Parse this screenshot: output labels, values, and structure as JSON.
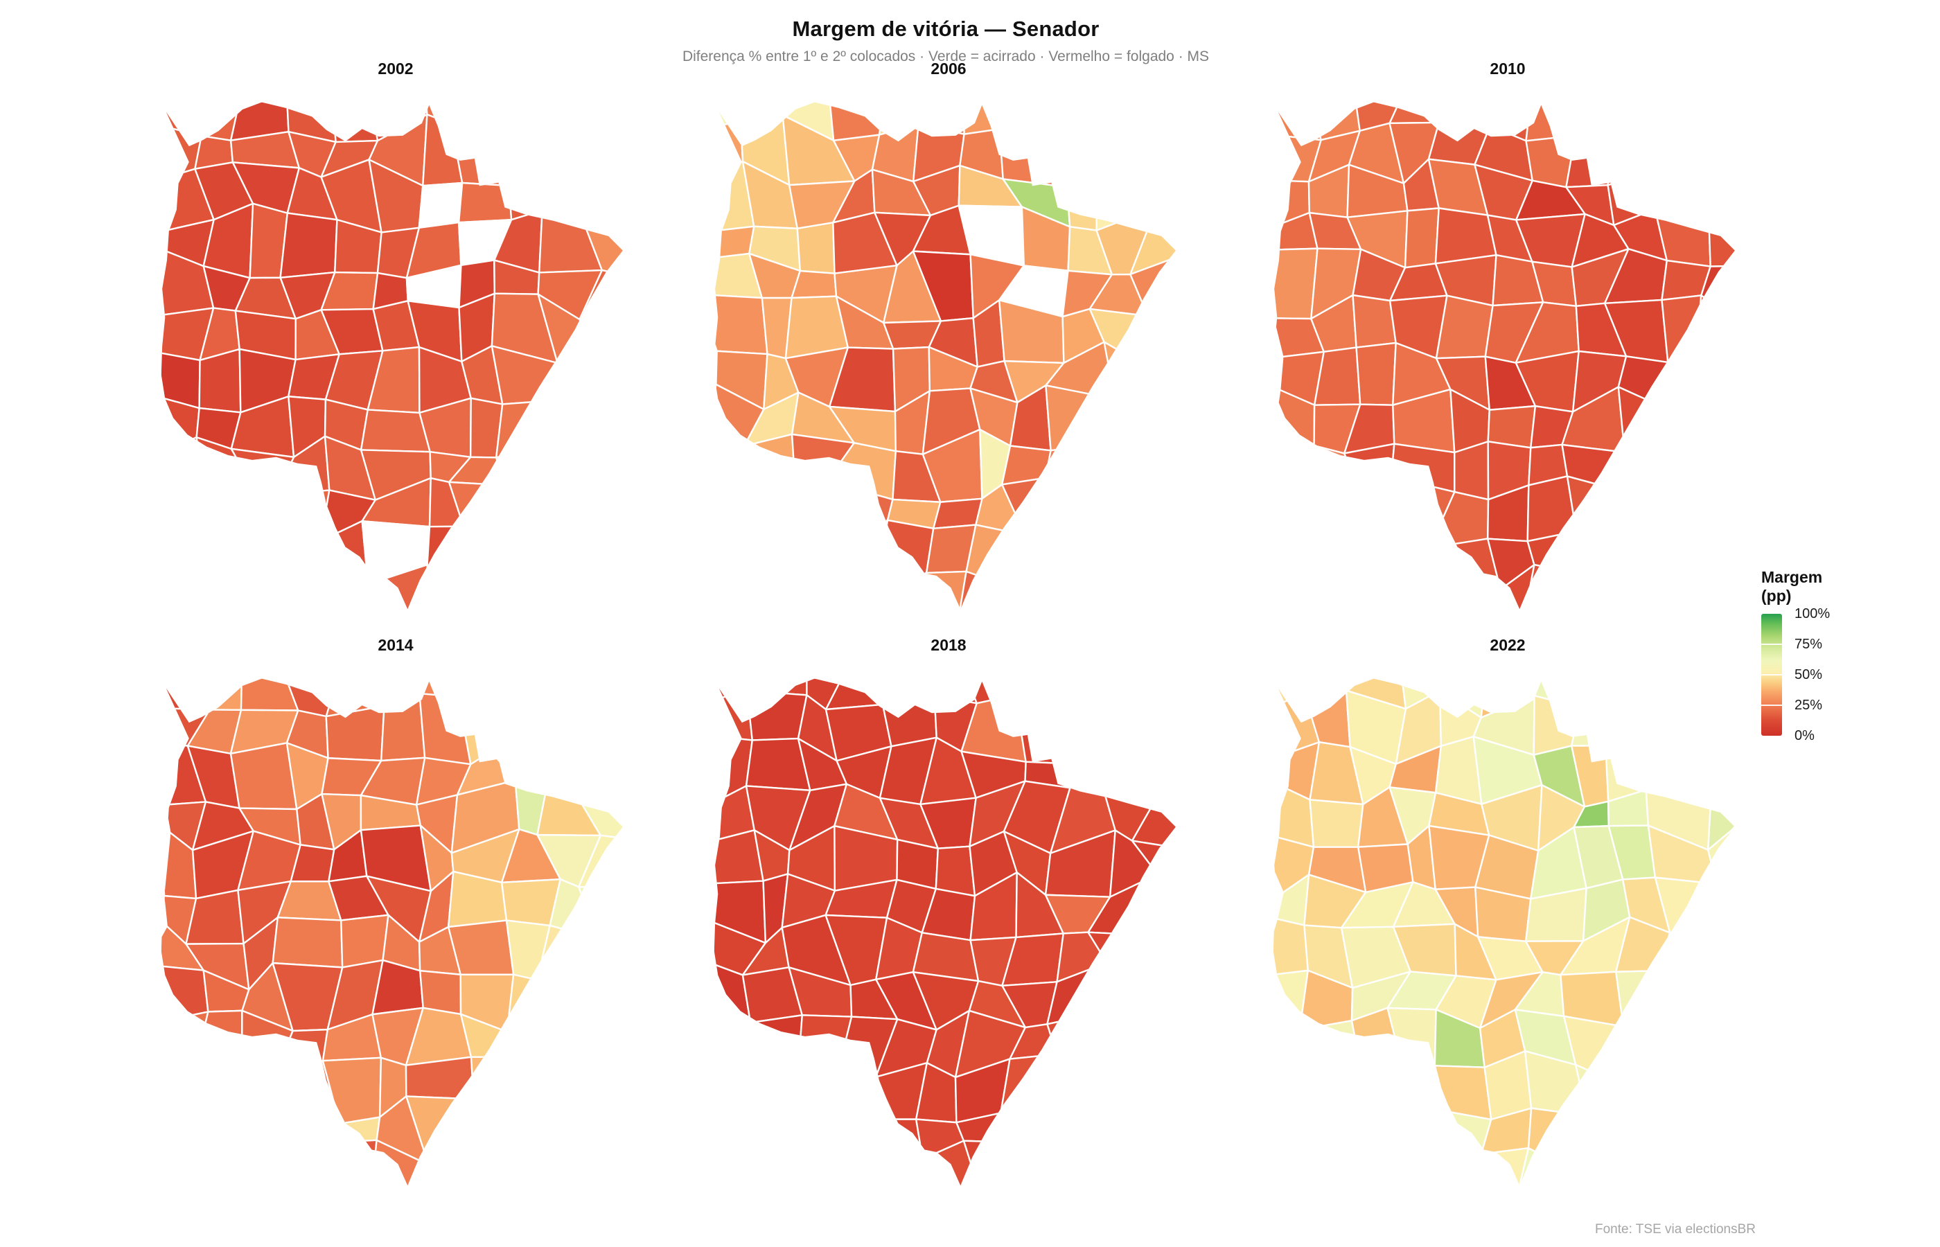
{
  "title": "Margem de vitória — Senador",
  "subtitle": "Diferença % entre 1º e 2º colocados · Verde = acirrado · Vermelho = folgado · MS",
  "footer": "Fonte: TSE via electionsBR",
  "legend": {
    "title_line1": "Margem",
    "title_line2": "(pp)",
    "position": "right",
    "ticks": [
      {
        "label": "100%",
        "value": 100
      },
      {
        "label": "75%",
        "value": 75
      },
      {
        "label": "50%",
        "value": 50
      },
      {
        "label": "25%",
        "value": 25
      },
      {
        "label": "0%",
        "value": 0
      }
    ]
  },
  "chart_data": {
    "type": "choropleth",
    "geography": "Mato Grosso do Sul (MS), Brasil — municípios",
    "facet_grid": {
      "rows": 2,
      "cols": 3
    },
    "scale": {
      "unit": "pp",
      "domain": [
        0,
        100
      ],
      "palette_name": "RdYlGn (0% = vermelho, 100% = verde)",
      "stops": [
        [
          0,
          "#ce3127"
        ],
        [
          12,
          "#dc4a34"
        ],
        [
          25,
          "#ef7c50"
        ],
        [
          36,
          "#f9a86a"
        ],
        [
          44,
          "#fbd084"
        ],
        [
          52,
          "#fbf0b0"
        ],
        [
          62,
          "#eff6bc"
        ],
        [
          72,
          "#d3e999"
        ],
        [
          82,
          "#a8d56f"
        ],
        [
          92,
          "#64bd56"
        ],
        [
          100,
          "#27a04e"
        ]
      ]
    },
    "facets": [
      {
        "year": "2002",
        "summary": "Quase todo o estado em vermelho/laranja (margens ~5–30 pp); oeste mais vermelho; alguns municípios em branco (sem dado) no nordeste e centro-sul",
        "approx_median_margin_pp": 15,
        "seed": 7,
        "noise": 7,
        "field": [
          [
            14,
            15,
            25
          ],
          [
            9,
            15,
            23
          ],
          [
            11,
            17,
            19
          ]
        ],
        "accent_cells": [
          {
            "cell": [
              1,
              4
            ],
            "value": 6
          },
          {
            "cell": [
              2,
              6
            ],
            "value": 7
          },
          {
            "cell": [
              7,
              4
            ],
            "value": 8
          }
        ],
        "missing_cells": [
          [
            6,
            2
          ],
          [
            7,
            3
          ],
          [
            6,
            4
          ],
          [
            5,
            10
          ]
        ]
      },
      {
        "year": "2006",
        "summary": "Noroeste em amarelo-claro (~50 pp, ex. Corumbá); centro-oeste vermelho (~10–15 pp); nordeste misto com um município verde (~80 pp); buracos brancos no centro-nordeste",
        "approx_median_margin_pp": 32,
        "seed": 13,
        "noise": 15,
        "field": [
          [
            50,
            30,
            55
          ],
          [
            45,
            14,
            42
          ],
          [
            30,
            26,
            36
          ]
        ],
        "accent_cells": [
          {
            "cell": [
              7,
              2
            ],
            "value": 80
          },
          {
            "cell": [
              6,
              8
            ],
            "value": 55
          }
        ],
        "missing_cells": [
          [
            6,
            3
          ],
          [
            7,
            4
          ]
        ]
      },
      {
        "year": "2010",
        "summary": "Estado todo vermelho/laranja; noroeste laranja (~25 pp), centro-leste vermelho escuro (~5–12 pp)",
        "approx_median_margin_pp": 15,
        "seed": 21,
        "noise": 6,
        "field": [
          [
            26,
            20,
            13
          ],
          [
            27,
            15,
            9
          ],
          [
            16,
            11,
            11
          ]
        ],
        "accent_cells": [
          {
            "cell": [
              6,
              2
            ],
            "value": 4
          },
          {
            "cell": [
              5,
              6
            ],
            "value": 5
          },
          {
            "cell": [
              8,
              6
            ],
            "value": 6
          }
        ],
        "missing_cells": []
      },
      {
        "year": "2014",
        "summary": "Oeste/centro vermelho (grande mancha vermelho-escura ~3–8 pp); leste em amarelo-claro e verde-claro (~45–70 pp)",
        "approx_median_margin_pp": 25,
        "seed": 33,
        "noise": 11,
        "field": [
          [
            22,
            30,
            55
          ],
          [
            14,
            22,
            55
          ],
          [
            12,
            25,
            50
          ]
        ],
        "accent_cells": [
          {
            "cell": [
              4,
              4
            ],
            "value": 4
          },
          {
            "cell": [
              5,
              4
            ],
            "value": 5
          },
          {
            "cell": [
              4,
              5
            ],
            "value": 8
          },
          {
            "cell": [
              8,
              3
            ],
            "value": 68
          },
          {
            "cell": [
              4,
              10
            ],
            "value": 48
          },
          {
            "cell": [
              5,
              7
            ],
            "value": 6
          }
        ],
        "missing_cells": []
      },
      {
        "year": "2018",
        "summary": "Praticamente todo o estado em vermelho escuro (margens ~5–12 pp), com pouquíssimos municípios laranja",
        "approx_median_margin_pp": 9,
        "seed": 41,
        "noise": 5,
        "field": [
          [
            9,
            8,
            12
          ],
          [
            7,
            9,
            9
          ],
          [
            8,
            10,
            8
          ]
        ],
        "accent_cells": [
          {
            "cell": [
              6,
              1
            ],
            "value": 25
          },
          {
            "cell": [
              8,
              5
            ],
            "value": 22
          },
          {
            "cell": [
              3,
              3
            ],
            "value": 18
          }
        ],
        "missing_cells": []
      },
      {
        "year": "2022",
        "summary": "Predominância de amarelo-claro/verde-claro (~45–65 pp); nordeste verde (até ~85 pp); noroeste alaranjado (~35 pp); laranjas dispersos no sul",
        "approx_median_margin_pp": 52,
        "seed": 55,
        "noise": 12,
        "field": [
          [
            35,
            52,
            68
          ],
          [
            46,
            50,
            60
          ],
          [
            50,
            53,
            57
          ]
        ],
        "accent_cells": [
          {
            "cell": [
              7,
              3
            ],
            "value": 85
          },
          {
            "cell": [
              6,
              2
            ],
            "value": 78
          },
          {
            "cell": [
              4,
              8
            ],
            "value": 78
          },
          {
            "cell": [
              3,
              10
            ],
            "value": 30
          },
          {
            "cell": [
              8,
              9
            ],
            "value": 35
          }
        ],
        "missing_cells": []
      }
    ]
  }
}
